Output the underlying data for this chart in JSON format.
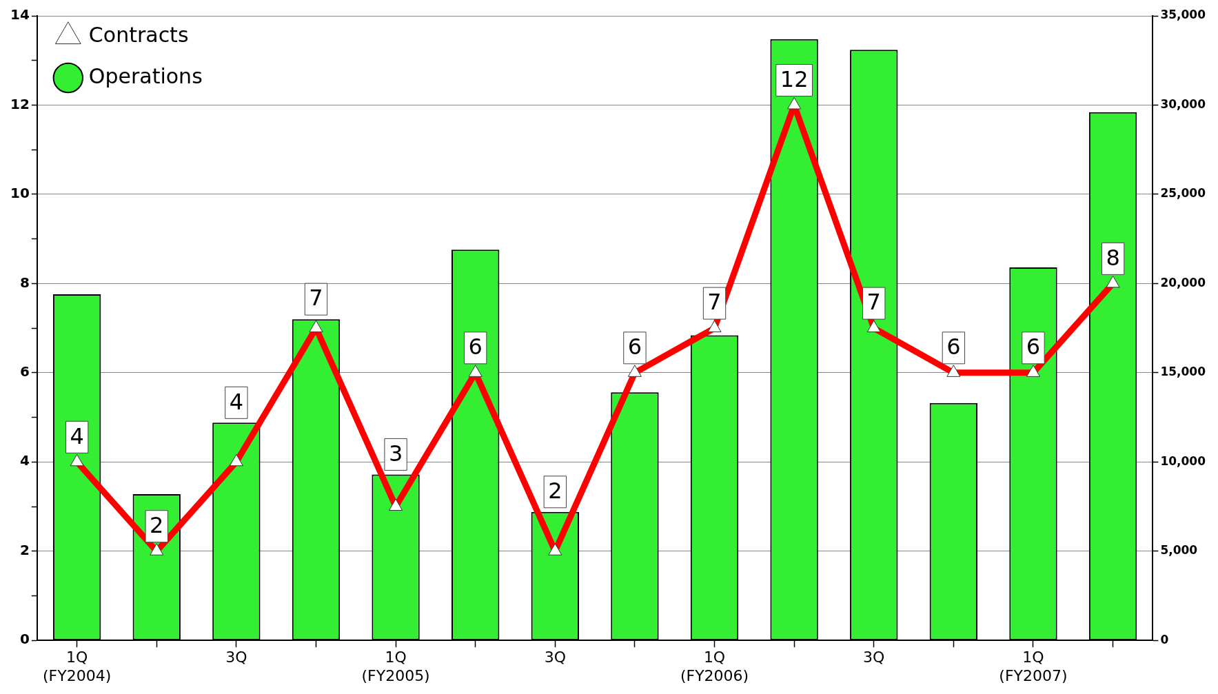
{
  "chart_data": {
    "type": "bar",
    "categories": [
      "1Q (FY2004)",
      null,
      "3Q",
      null,
      "1Q (FY2005)",
      null,
      "3Q",
      null,
      "1Q (FY2006)",
      null,
      "3Q",
      null,
      "1Q (FY2007)",
      null
    ],
    "series": [
      {
        "name": "Contracts",
        "type": "line",
        "color": "#ff0000",
        "marker": "triangle",
        "values": [
          4,
          2,
          4,
          7,
          3,
          6,
          2,
          6,
          7,
          12,
          7,
          6,
          6,
          8
        ],
        "value_labels": [
          "4",
          "2",
          "4",
          "7",
          "3",
          "6",
          "2",
          "6",
          "7",
          "12",
          "7",
          "6",
          "6",
          "8"
        ]
      },
      {
        "name": "Operations",
        "axis": "y2",
        "color": "#33ee33",
        "values": [
          19400,
          8200,
          12200,
          18000,
          9300,
          21900,
          7200,
          13900,
          17100,
          33700,
          33100,
          13300,
          20900,
          29600
        ]
      }
    ],
    "ylim": [
      0,
      14
    ],
    "yticks": [
      0,
      {
        "value": 1,
        "label": null
      },
      2,
      {
        "value": 3,
        "label": null
      },
      4,
      {
        "value": 5,
        "label": null
      },
      6,
      {
        "value": 7,
        "label": null
      },
      8,
      {
        "value": 9,
        "label": null
      },
      10,
      {
        "value": 11,
        "label": null
      },
      12,
      {
        "value": 13,
        "label": null
      },
      14
    ],
    "y2lim": [
      0,
      35000
    ],
    "y2ticks": [
      0,
      {
        "value": 5000,
        "label": "5,000"
      },
      {
        "value": 10000,
        "label": "10,000"
      },
      {
        "value": 15000,
        "label": "15,000"
      },
      {
        "value": 20000,
        "label": "20,000"
      },
      {
        "value": 25000,
        "label": "25,000"
      },
      {
        "value": 30000,
        "label": "30,000"
      },
      {
        "value": 35000,
        "label": "35,000"
      }
    ],
    "grid": "y",
    "legend": "top left"
  }
}
